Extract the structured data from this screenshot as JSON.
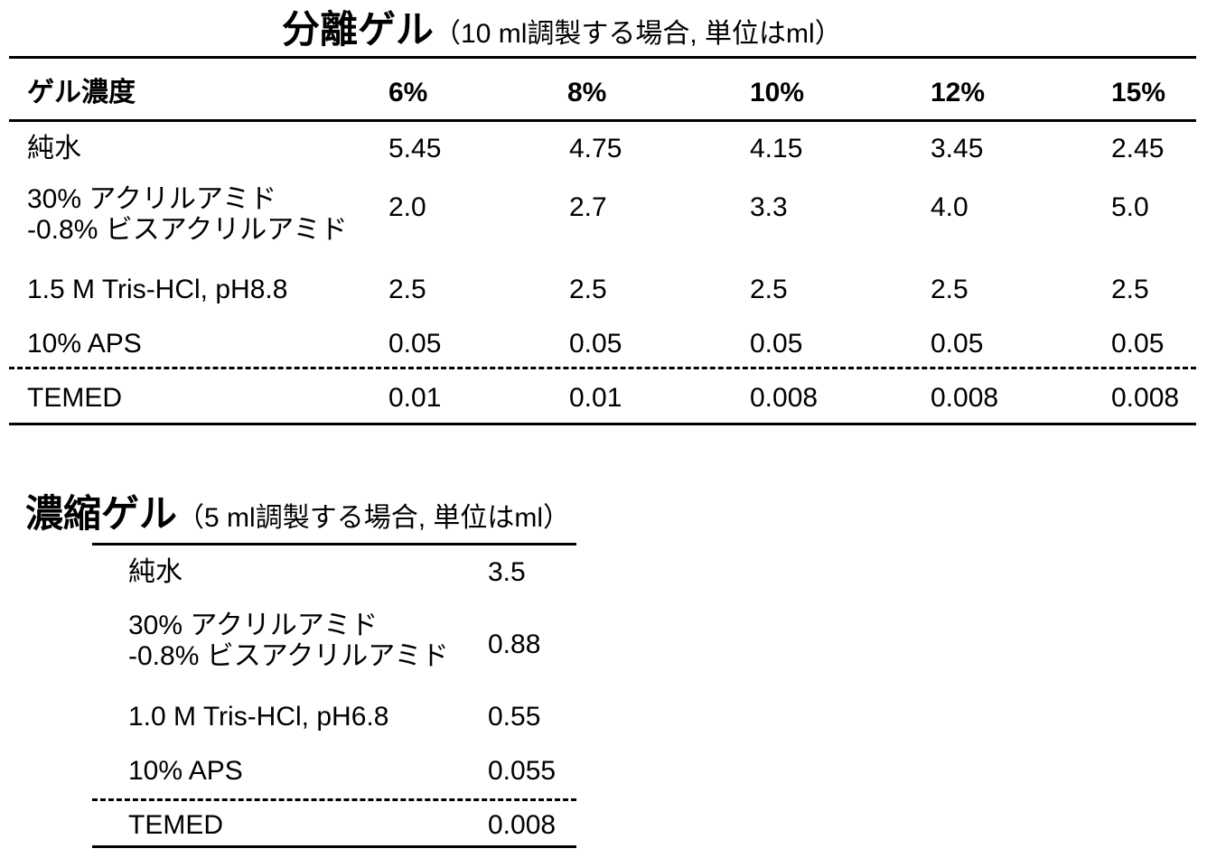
{
  "separating_gel": {
    "title_main": "分離ゲル",
    "title_sub": "（10 ml調製する場合, 単位はml）",
    "header": [
      "ゲル濃度",
      "6%",
      "8%",
      "10%",
      "12%",
      "15%"
    ],
    "rows": [
      [
        "純水",
        "5.45",
        "4.75",
        "4.15",
        "3.45",
        "2.45"
      ],
      [
        "30% アクリルアミド\n-0.8% ビスアクリルアミド",
        "2.0",
        "2.7",
        "3.3",
        "4.0",
        "5.0"
      ],
      [
        "1.5 M Tris-HCl, pH8.8",
        "2.5",
        "2.5",
        "2.5",
        "2.5",
        "2.5"
      ],
      [
        "10% APS",
        "0.05",
        "0.05",
        "0.05",
        "0.05",
        "0.05"
      ],
      [
        "TEMED",
        "0.01",
        "0.01",
        "0.008",
        "0.008",
        "0.008"
      ]
    ]
  },
  "stacking_gel": {
    "title_main": "濃縮ゲル",
    "title_sub": "（5 ml調製する場合, 単位はml）",
    "rows": [
      [
        "純水",
        "3.5"
      ],
      [
        "30% アクリルアミド\n-0.8% ビスアクリルアミド",
        "0.88"
      ],
      [
        "1.0 M Tris-HCl, pH6.8",
        "0.55"
      ],
      [
        "10% APS",
        "0.055"
      ],
      [
        "TEMED",
        "0.008"
      ]
    ]
  }
}
